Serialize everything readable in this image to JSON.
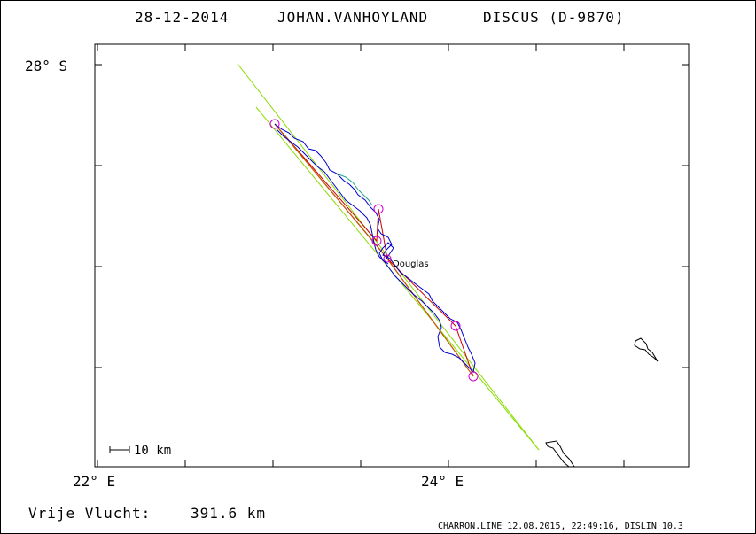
{
  "header": {
    "date": "28-12-2014",
    "pilot": "JOHAN.VANHOYLAND",
    "glider": "DISCUS (D-9870)"
  },
  "axes": {
    "lat_label": "28° S",
    "lon_label_left": "22° E",
    "lon_label_right": "24° E"
  },
  "scale_bar": {
    "label": "10 km"
  },
  "place": {
    "name": "Douglas"
  },
  "distance": {
    "label": "Vrije Vlucht:",
    "value": "391.6 km"
  },
  "footer": {
    "text": "CHARRON.LINE 12.08.2015, 22:49:16, DISLIN 10.3"
  },
  "colors": {
    "track": "#0000cc",
    "task": "#cc0000",
    "turnpoint": "#cc00cc",
    "guide": "#88dd00",
    "coast": "#000000"
  }
}
